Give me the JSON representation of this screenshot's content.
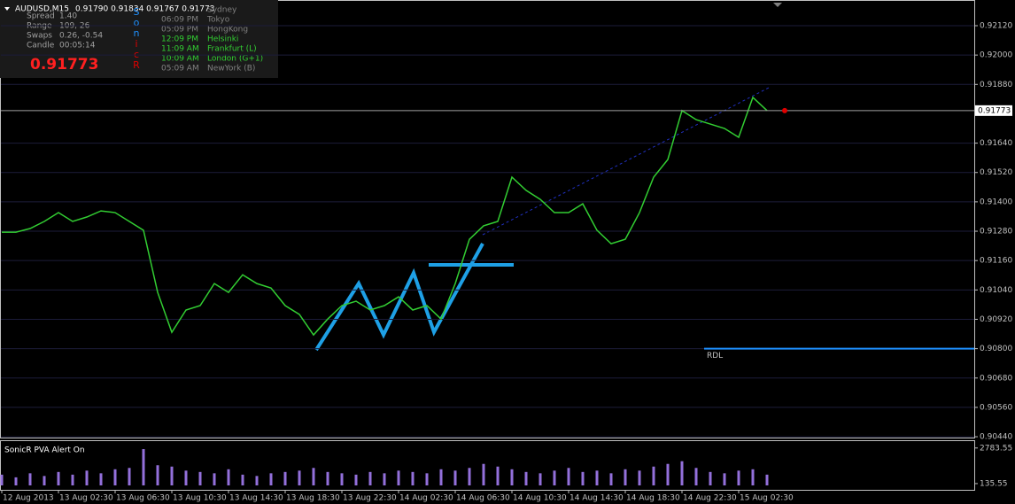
{
  "panel": {
    "symbol": "AUDUSD,M15",
    "ohlc": "0.91790 0.91834 0.91767 0.91773",
    "stats": [
      {
        "label": "Spread",
        "value": "1.40"
      },
      {
        "label": "Range",
        "value": "109, 26"
      },
      {
        "label": "Swaps",
        "value": "0.26, -0.54"
      },
      {
        "label": "Candle",
        "value": "00:05:14"
      }
    ],
    "big_price": "0.91773",
    "letters": [
      {
        "text": "S",
        "color": "#1e90ff"
      },
      {
        "text": "o",
        "color": "#1e90ff"
      },
      {
        "text": "n",
        "color": "#1e90ff"
      },
      {
        "text": "i",
        "color": "#e00000"
      },
      {
        "text": "c",
        "color": "#e00000"
      },
      {
        "text": "R",
        "color": "#e00000"
      }
    ],
    "sessions": [
      {
        "time": "",
        "city": "Sydney",
        "color": "#808080"
      },
      {
        "time": "06:09 PM",
        "city": "Tokyo",
        "color": "#808080"
      },
      {
        "time": "05:09 PM",
        "city": "HongKong",
        "color": "#808080"
      },
      {
        "time": "12:09 PM",
        "city": "Helsinki",
        "color": "#32cd32"
      },
      {
        "time": "11:09 AM",
        "city": "Frankfurt  (L)",
        "color": "#32cd32"
      },
      {
        "time": "10:09 AM",
        "city": "London  (G+1)",
        "color": "#32cd32"
      },
      {
        "time": "05:09 AM",
        "city": "NewYork  (B)",
        "color": "#808080"
      }
    ]
  },
  "chart_data": [
    {
      "type": "line",
      "color": "#32cd32",
      "categories": [
        "12 Aug 2013",
        null,
        null,
        null,
        "13 Aug 02:30",
        null,
        null,
        null,
        "13 Aug 06:30",
        null,
        null,
        null,
        "13 Aug 10:30",
        null,
        null,
        null,
        "13 Aug 14:30",
        null,
        null,
        null,
        "13 Aug 18:30",
        null,
        null,
        null,
        "13 Aug 22:30",
        null,
        null,
        null,
        "14 Aug 02:30",
        null,
        null,
        null,
        "14 Aug 06:30",
        null,
        null,
        null,
        "14 Aug 10:30",
        null,
        null,
        null,
        "14 Aug 14:30",
        null,
        null,
        null,
        "14 Aug 18:30",
        null,
        null,
        null,
        "14 Aug 22:30",
        null,
        null,
        null,
        "15 Aug 02:30",
        null,
        null
      ],
      "values": [
        0.91276,
        0.91276,
        0.91291,
        0.9132,
        0.91356,
        0.9132,
        0.91338,
        0.91363,
        0.91356,
        0.9132,
        0.91284,
        0.9103,
        0.90867,
        0.90958,
        0.90976,
        0.91066,
        0.9103,
        0.91102,
        0.91066,
        0.91048,
        0.90976,
        0.9094,
        0.90856,
        0.90921,
        0.90976,
        0.90994,
        0.90958,
        0.90976,
        0.91012,
        0.90958,
        0.90976,
        0.90921,
        0.91066,
        0.91247,
        0.91302,
        0.9132,
        0.91501,
        0.91447,
        0.9141,
        0.91356,
        0.91356,
        0.91392,
        0.91284,
        0.91229,
        0.91247,
        0.91356,
        0.91501,
        0.91573,
        0.91773,
        0.91736,
        0.91718,
        0.917,
        0.91664,
        0.91827,
        0.91773
      ],
      "ylim": [
        0.90433,
        0.92225
      ],
      "yticks": [
        {
          "value": 0.9212,
          "label": "0.92120"
        },
        {
          "value": 0.92,
          "label": "0.92000"
        },
        {
          "value": 0.9188,
          "label": "0.91880"
        },
        {
          "value": 0.9164,
          "label": "0.91640"
        },
        {
          "value": 0.9152,
          "label": "0.91520"
        },
        {
          "value": 0.914,
          "label": "0.91400"
        },
        {
          "value": 0.9128,
          "label": "0.91280"
        },
        {
          "value": 0.9116,
          "label": "0.91160"
        },
        {
          "value": 0.9104,
          "label": "0.91040"
        },
        {
          "value": 0.9092,
          "label": "0.90920"
        },
        {
          "value": 0.908,
          "label": "0.90800"
        },
        {
          "value": 0.9068,
          "label": "0.90680"
        },
        {
          "value": 0.9056,
          "label": "0.90560"
        },
        {
          "value": 0.9044,
          "label": "0.90440"
        }
      ],
      "last_price": 0.91773,
      "level": {
        "label": "RDL",
        "value": 0.908
      }
    },
    {
      "type": "bar",
      "title": "SonicR PVA   Alert On",
      "color": "#9370db",
      "values": [
        800,
        600,
        900,
        700,
        1000,
        800,
        1100,
        900,
        1200,
        1300,
        2700,
        1500,
        1400,
        1100,
        1000,
        900,
        1200,
        800,
        700,
        900,
        1000,
        1100,
        1300,
        1000,
        900,
        800,
        1000,
        900,
        1100,
        1000,
        900,
        1200,
        1100,
        1300,
        1600,
        1400,
        1200,
        1000,
        900,
        1100,
        1300,
        1000,
        1100,
        900,
        1200,
        1100,
        1400,
        1600,
        1800,
        1300,
        1000,
        900,
        1100,
        1200,
        800
      ],
      "ylim": [
        0,
        2900
      ],
      "yticks": [
        {
          "value": 2783.55,
          "label": "2783.55"
        },
        {
          "value": 135.55,
          "label": "135.55"
        }
      ]
    }
  ]
}
